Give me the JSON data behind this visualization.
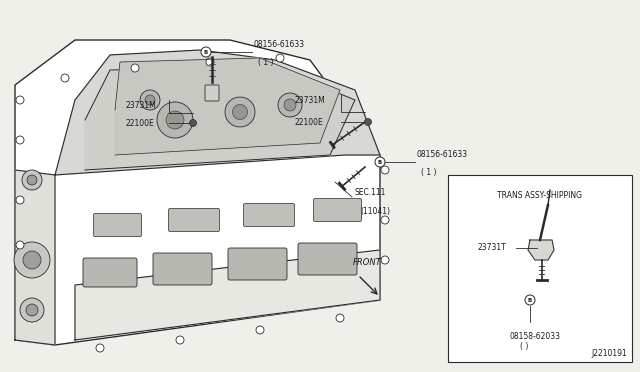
{
  "bg_color": "#f0f0eb",
  "line_color": "#2a2a2a",
  "text_color": "#1a1a1a",
  "fig_width": 6.4,
  "fig_height": 3.72,
  "labels": {
    "bolt_top_label": "08156-61633",
    "bolt_top_sub": "( 1 )",
    "bolt_top_circle": "B",
    "label_23731M_left": "23731M",
    "label_22100E_left": "22100E",
    "label_23731M_right": "23731M",
    "label_22100E_right": "22100E",
    "bolt_right_label": "08156-61633",
    "bolt_right_sub": "( 1 )",
    "bolt_right_circle": "B",
    "sec111_line1": "SEC.111",
    "sec111_line2": "(11041)",
    "front": "FRONT",
    "trans_title": "TRANS ASSY-SHIPPING",
    "label_23731T": "23731T",
    "bolt_bottom_label": "08158-62033",
    "bolt_bottom_sub": "( )",
    "bolt_bottom_circle": "B",
    "diagram_id": "J2210191"
  }
}
